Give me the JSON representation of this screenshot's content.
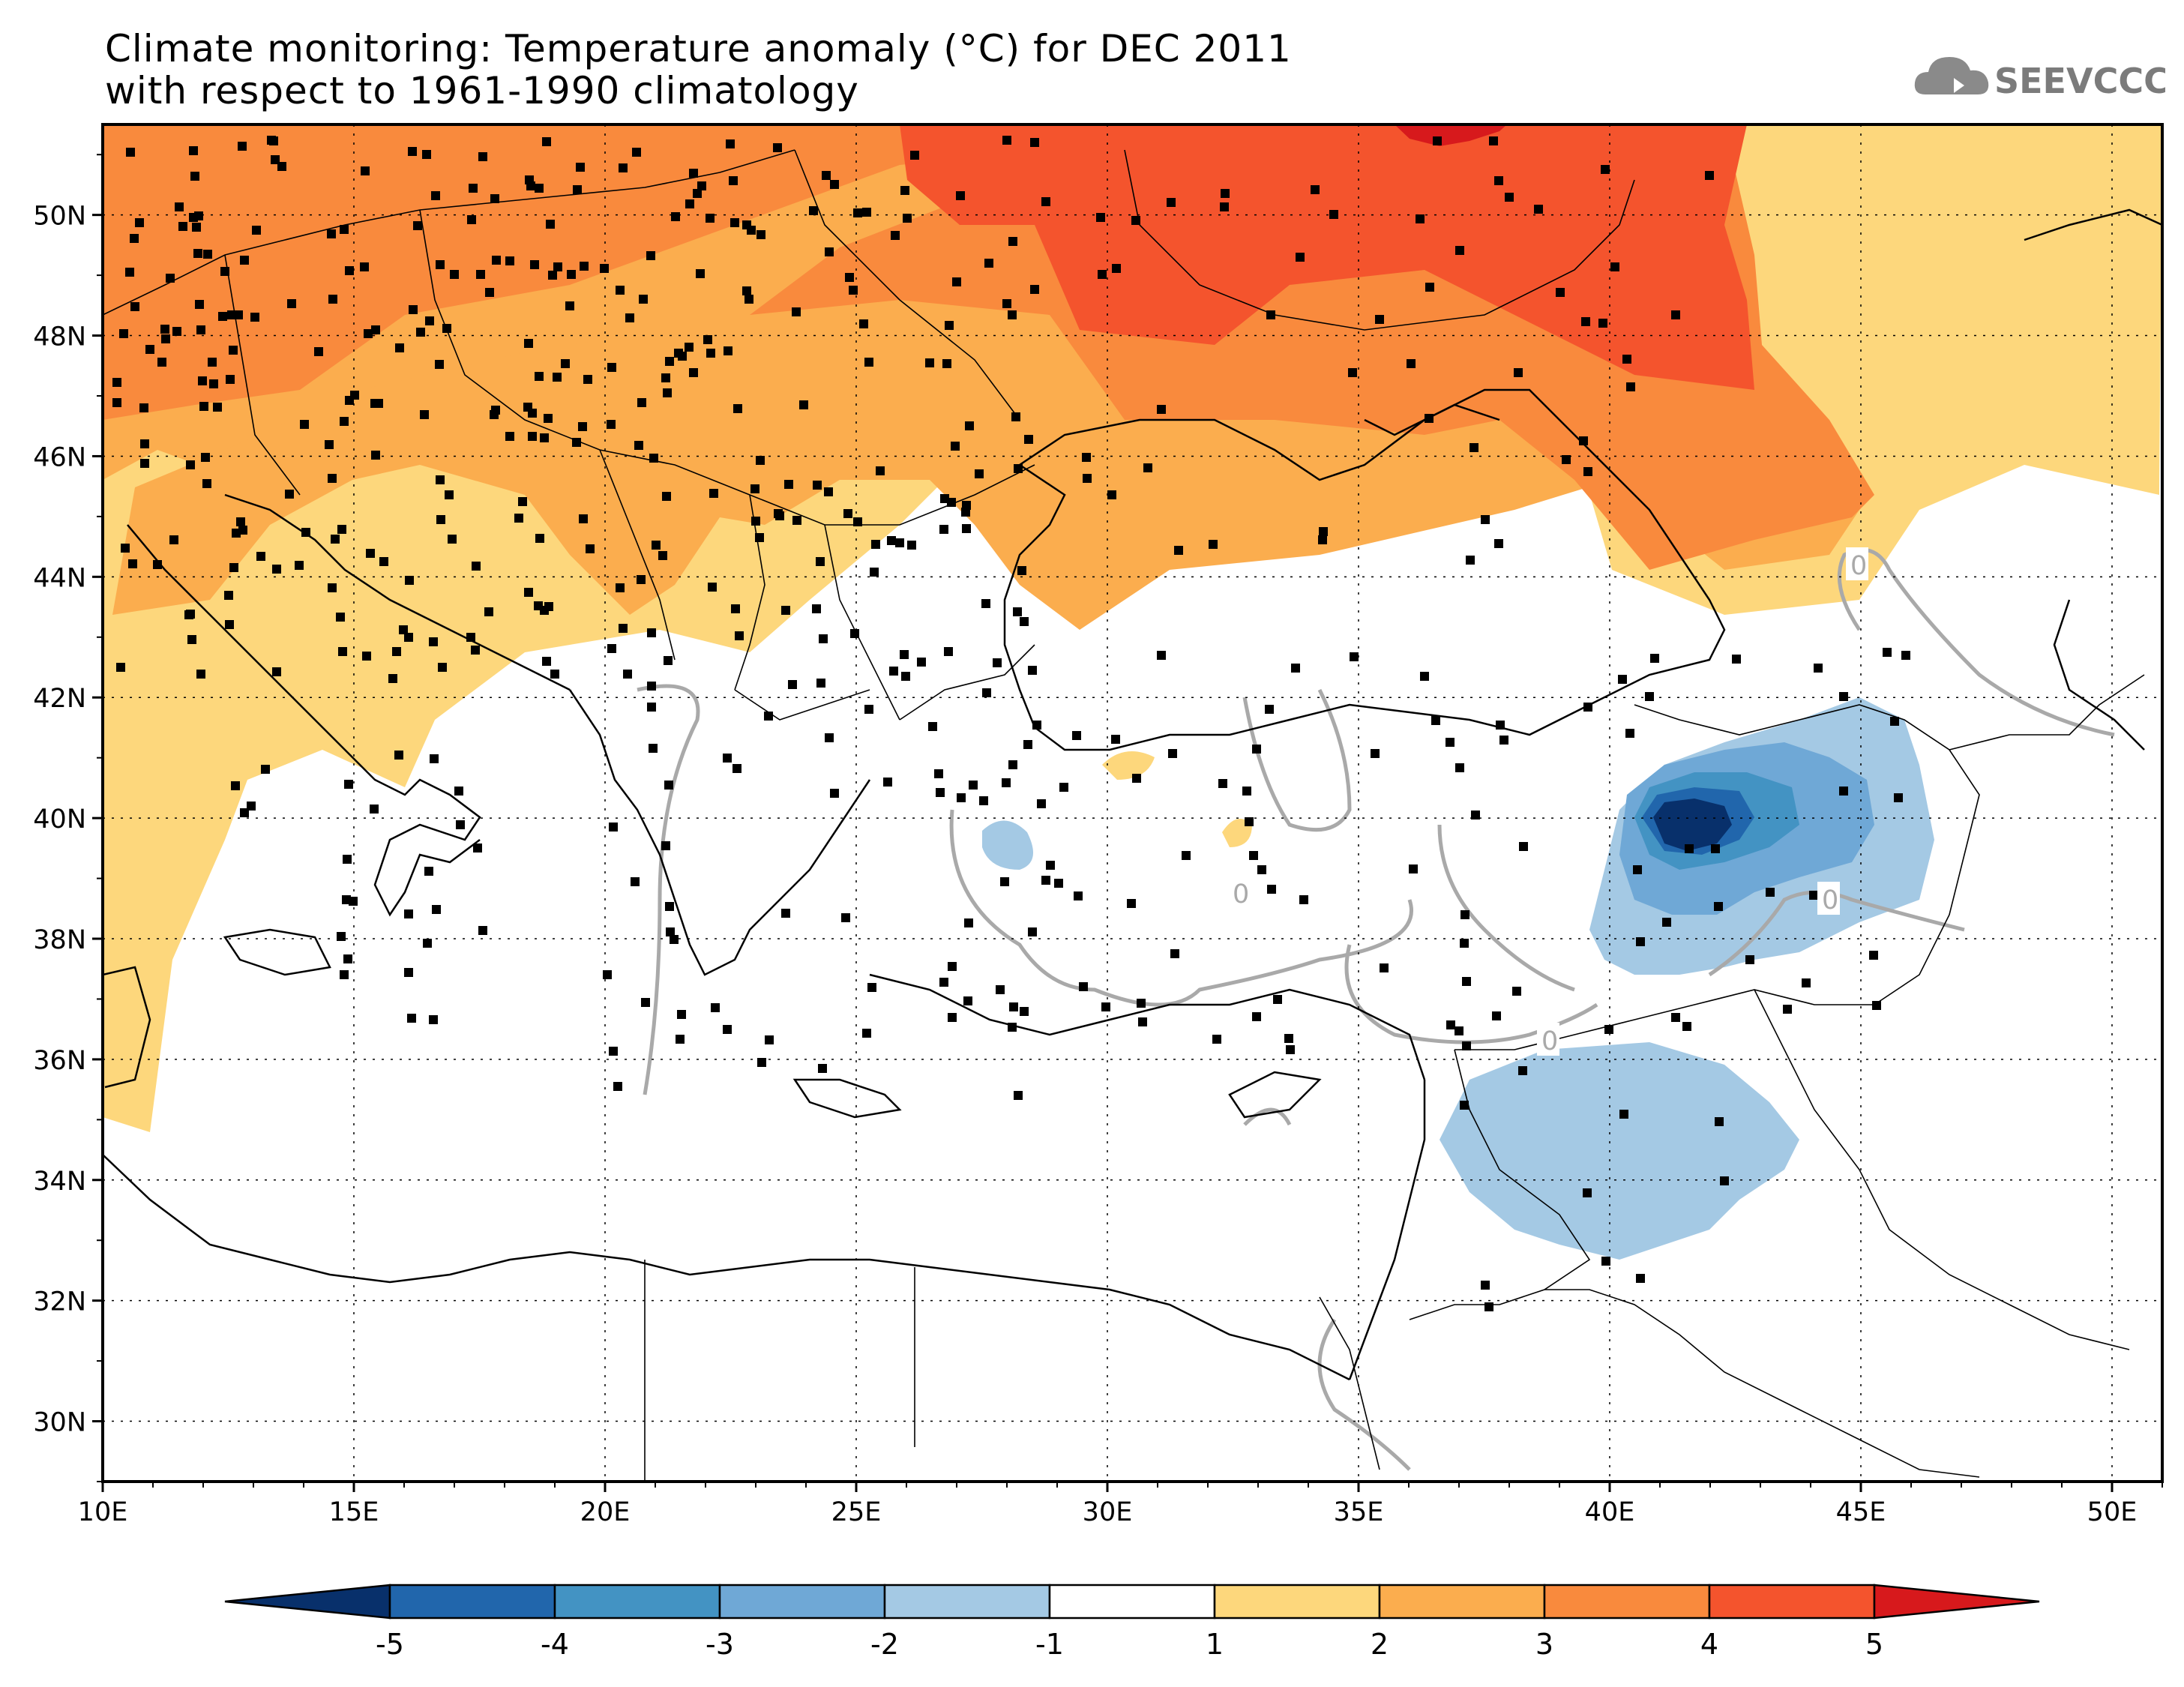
{
  "title": {
    "line1": "Climate monitoring: Temperature anomaly (°C) for DEC 2011",
    "line2": "with respect to 1961-1990 climatology"
  },
  "logo": {
    "text": "SEEVCCC",
    "icon": "cloud-icon",
    "color": "#7b7b7b"
  },
  "map": {
    "projection": "lat-lon",
    "lon_range": [
      10,
      51
    ],
    "lat_range": [
      29,
      51.5
    ],
    "lon_ticks": [
      {
        "value": 10,
        "label": "10E"
      },
      {
        "value": 15,
        "label": "15E"
      },
      {
        "value": 20,
        "label": "20E"
      },
      {
        "value": 25,
        "label": "25E"
      },
      {
        "value": 30,
        "label": "30E"
      },
      {
        "value": 35,
        "label": "35E"
      },
      {
        "value": 40,
        "label": "40E"
      },
      {
        "value": 45,
        "label": "45E"
      },
      {
        "value": 50,
        "label": "50E"
      }
    ],
    "lat_ticks": [
      {
        "value": 50,
        "label": "50N"
      },
      {
        "value": 48,
        "label": "48N"
      },
      {
        "value": 46,
        "label": "46N"
      },
      {
        "value": 44,
        "label": "44N"
      },
      {
        "value": 42,
        "label": "42N"
      },
      {
        "value": 40,
        "label": "40N"
      },
      {
        "value": 38,
        "label": "38N"
      },
      {
        "value": 36,
        "label": "36N"
      },
      {
        "value": 34,
        "label": "34N"
      },
      {
        "value": 32,
        "label": "32N"
      },
      {
        "value": 30,
        "label": "30N"
      }
    ],
    "grid": "dotted",
    "contour_label": "0",
    "station_marker": "black square"
  },
  "colorbar": {
    "levels": [
      "-5",
      "-4",
      "-3",
      "-2",
      "-1",
      "1",
      "2",
      "3",
      "4",
      "5"
    ],
    "colors": [
      "#08306b",
      "#2166ac",
      "#4393c3",
      "#6fa8d6",
      "#a4c9e4",
      "#ffffff",
      "#fdd77c",
      "#fbad4e",
      "#f98a3d",
      "#f4542d",
      "#d7191c"
    ]
  }
}
